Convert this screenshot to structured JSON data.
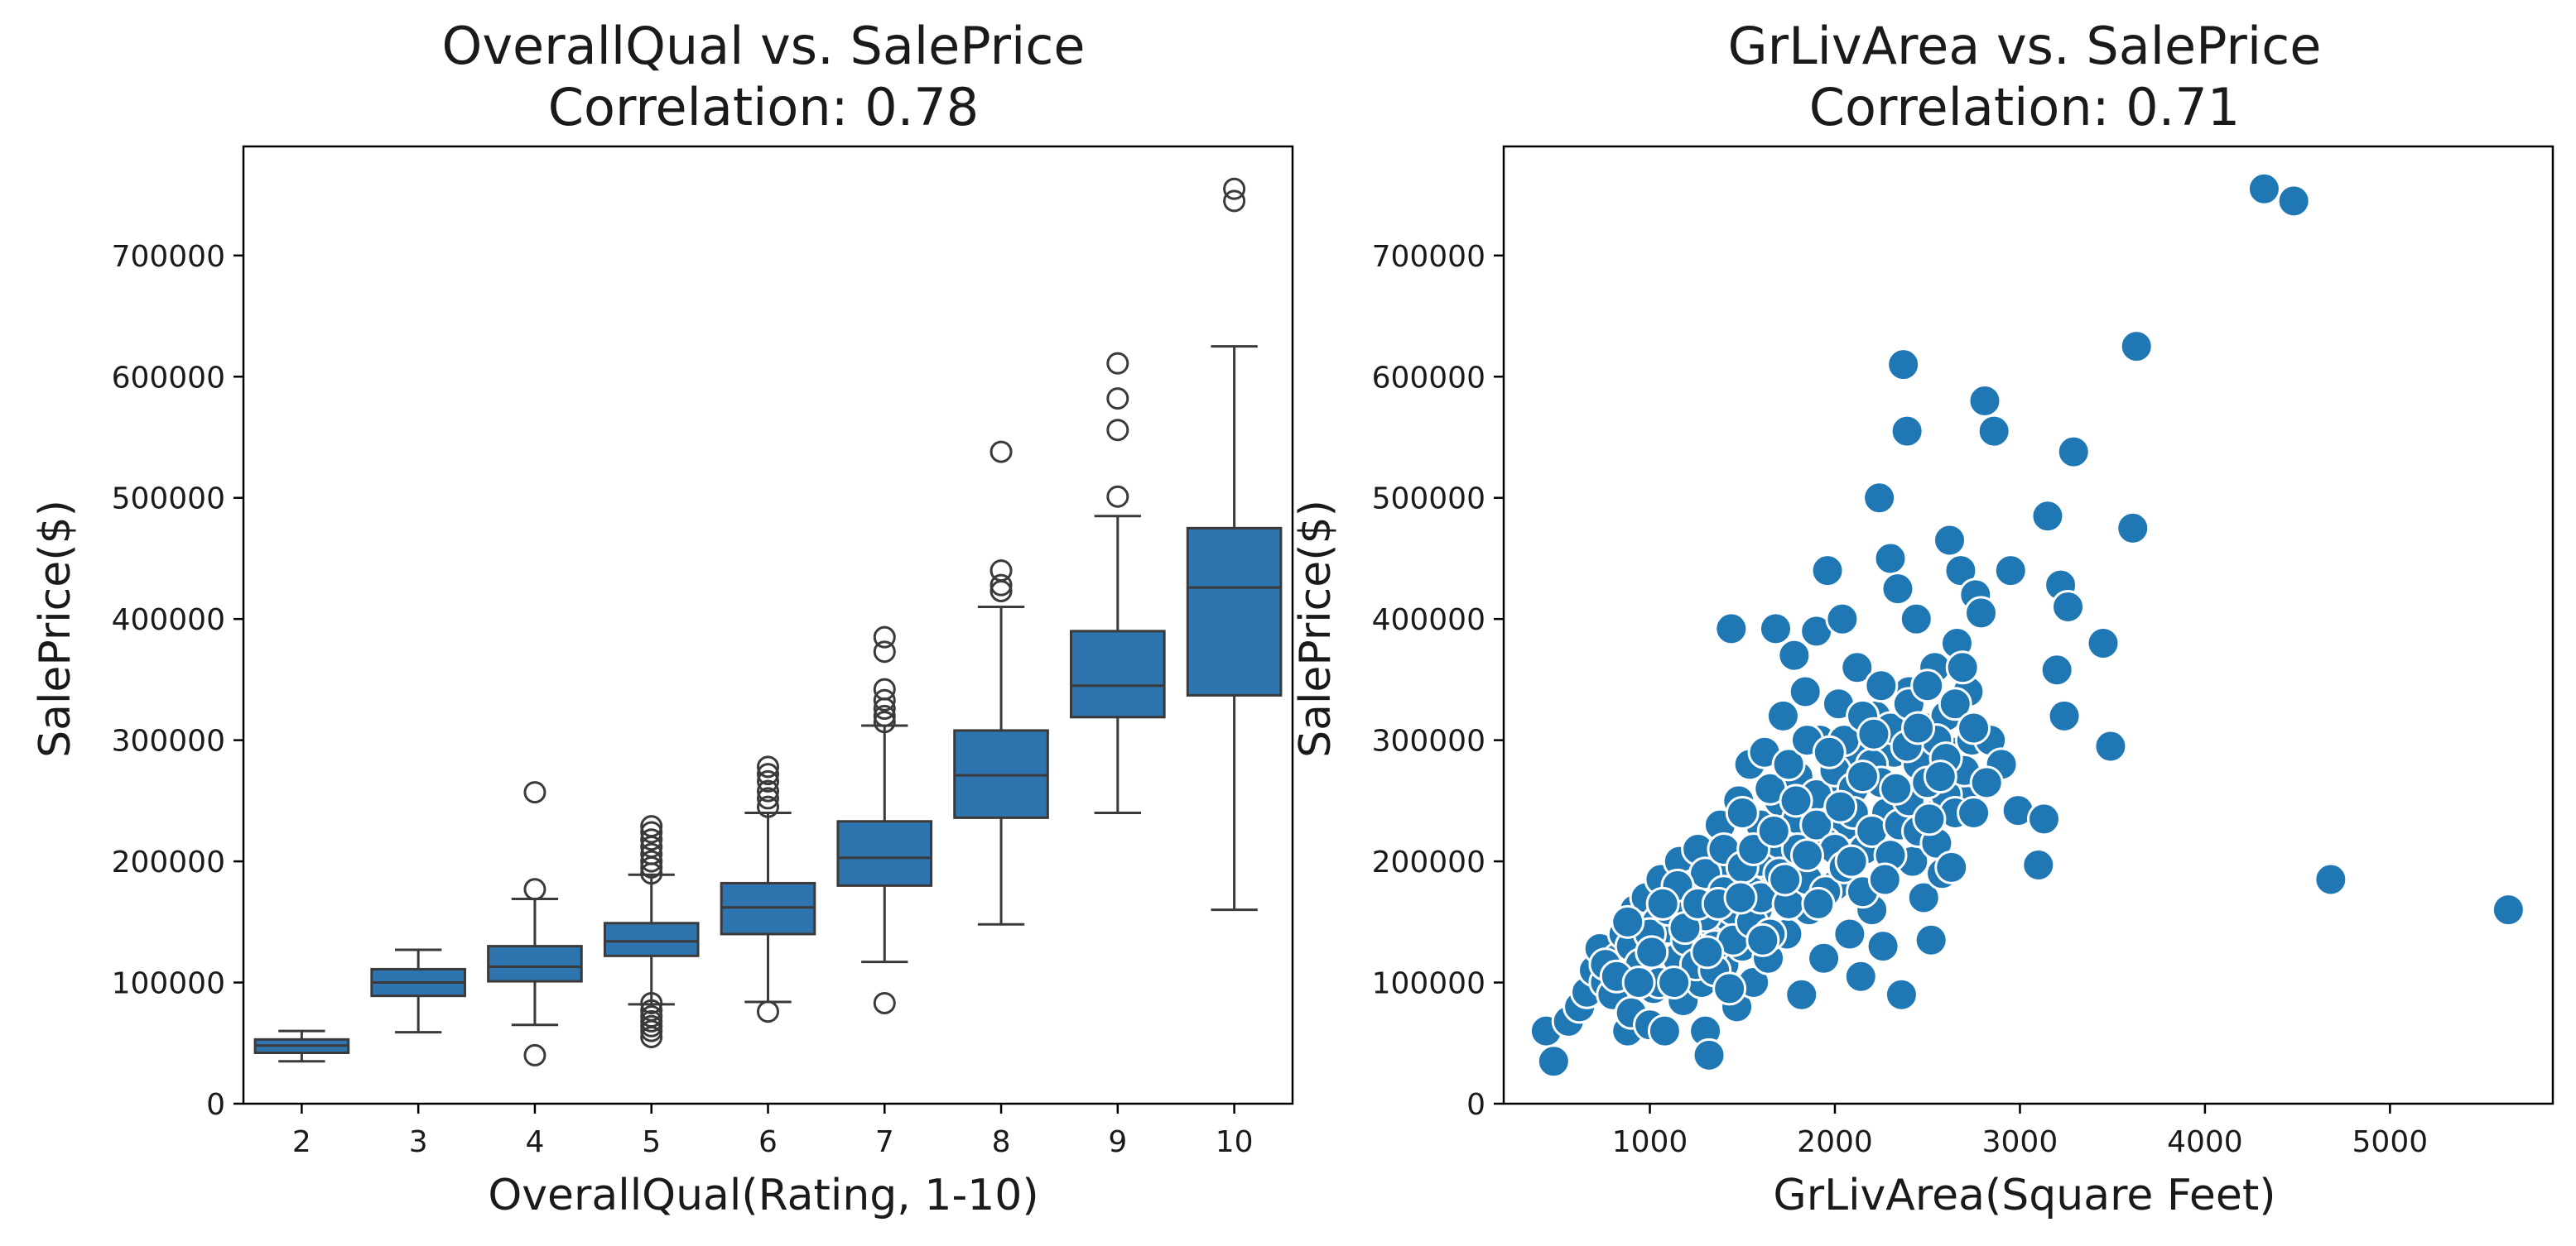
{
  "chart_data": [
    {
      "type": "box",
      "title_line1": "OverallQual vs. SalePrice",
      "title_line2": "Correlation: 0.78",
      "xlabel": "OverallQual(Rating, 1-10)",
      "ylabel": "SalePrice($)",
      "ylim": [
        0,
        790000
      ],
      "yticks": [
        0,
        100000,
        200000,
        300000,
        400000,
        500000,
        600000,
        700000
      ],
      "color": "#2e75b0",
      "categories": [
        "2",
        "3",
        "4",
        "5",
        "6",
        "7",
        "8",
        "9",
        "10"
      ],
      "boxes": [
        {
          "category": "2",
          "whisker_low": 35000,
          "q1": 42000,
          "median": 48000,
          "q3": 53000,
          "whisker_high": 60000,
          "outliers": []
        },
        {
          "category": "3",
          "whisker_low": 59000,
          "q1": 89000,
          "median": 100000,
          "q3": 111000,
          "whisker_high": 127000,
          "outliers": []
        },
        {
          "category": "4",
          "whisker_low": 65000,
          "q1": 101000,
          "median": 113000,
          "q3": 130000,
          "whisker_high": 169000,
          "outliers": [
            40000,
            177000,
            257000
          ]
        },
        {
          "category": "5",
          "whisker_low": 82000,
          "q1": 122000,
          "median": 134000,
          "q3": 149000,
          "whisker_high": 189000,
          "outliers": [
            55000,
            60000,
            64000,
            68000,
            72000,
            77000,
            83000,
            190000,
            195000,
            200000,
            206000,
            212000,
            218000,
            224000,
            229000
          ]
        },
        {
          "category": "6",
          "whisker_low": 84000,
          "q1": 140000,
          "median": 162000,
          "q3": 182000,
          "whisker_high": 240000,
          "outliers": [
            76000,
            245000,
            252000,
            258000,
            266000,
            272000,
            278000
          ]
        },
        {
          "category": "7",
          "whisker_low": 117000,
          "q1": 180000,
          "median": 203000,
          "q3": 233000,
          "whisker_high": 312000,
          "outliers": [
            83000,
            315000,
            320000,
            326000,
            333000,
            342000,
            373000,
            385000
          ]
        },
        {
          "category": "8",
          "whisker_low": 148000,
          "q1": 236000,
          "median": 271000,
          "q3": 308000,
          "whisker_high": 410000,
          "outliers": [
            423000,
            428000,
            440000,
            538000
          ]
        },
        {
          "category": "9",
          "whisker_low": 240000,
          "q1": 319000,
          "median": 345000,
          "q3": 390000,
          "whisker_high": 485000,
          "outliers": [
            501000,
            556000,
            582000,
            611000
          ]
        },
        {
          "category": "10",
          "whisker_low": 160000,
          "q1": 337000,
          "median": 426000,
          "q3": 475000,
          "whisker_high": 625000,
          "outliers": [
            745000,
            755000
          ]
        }
      ]
    },
    {
      "type": "scatter",
      "title_line1": "GrLivArea vs. SalePrice",
      "title_line2": "Correlation: 0.71",
      "xlabel": "GrLivArea(Square Feet)",
      "ylabel": "SalePrice($)",
      "xlim": [
        210,
        5880
      ],
      "ylim": [
        0,
        790000
      ],
      "xticks": [
        1000,
        2000,
        3000,
        4000,
        5000
      ],
      "yticks": [
        0,
        100000,
        200000,
        300000,
        400000,
        500000,
        600000,
        700000
      ],
      "color": "#1f77b4",
      "points": [
        [
          440,
          60000
        ],
        [
          480,
          35000
        ],
        [
          560,
          68000
        ],
        [
          620,
          80000
        ],
        [
          660,
          92000
        ],
        [
          700,
          110000
        ],
        [
          730,
          128000
        ],
        [
          760,
          100000
        ],
        [
          800,
          90000
        ],
        [
          830,
          120000
        ],
        [
          860,
          140000
        ],
        [
          880,
          60000
        ],
        [
          900,
          75000
        ],
        [
          920,
          160000
        ],
        [
          950,
          130000
        ],
        [
          980,
          170000
        ],
        [
          1000,
          65000
        ],
        [
          1020,
          95000
        ],
        [
          1040,
          150000
        ],
        [
          1060,
          185000
        ],
        [
          1080,
          60000
        ],
        [
          1100,
          110000
        ],
        [
          1120,
          135000
        ],
        [
          1140,
          165000
        ],
        [
          1160,
          200000
        ],
        [
          1180,
          85000
        ],
        [
          1200,
          125000
        ],
        [
          1220,
          150000
        ],
        [
          1240,
          180000
        ],
        [
          1260,
          210000
        ],
        [
          1280,
          100000
        ],
        [
          1300,
          60000
        ],
        [
          1320,
          40000
        ],
        [
          1330,
          140000
        ],
        [
          1350,
          175000
        ],
        [
          1380,
          230000
        ],
        [
          1400,
          115000
        ],
        [
          1420,
          155000
        ],
        [
          1440,
          392000
        ],
        [
          1450,
          190000
        ],
        [
          1470,
          80000
        ],
        [
          1480,
          250000
        ],
        [
          1500,
          130000
        ],
        [
          1520,
          205000
        ],
        [
          1540,
          280000
        ],
        [
          1560,
          100000
        ],
        [
          1580,
          160000
        ],
        [
          1600,
          230000
        ],
        [
          1620,
          290000
        ],
        [
          1640,
          120000
        ],
        [
          1660,
          180000
        ],
        [
          1680,
          392000
        ],
        [
          1700,
          250000
        ],
        [
          1720,
          320000
        ],
        [
          1740,
          140000
        ],
        [
          1760,
          200000
        ],
        [
          1780,
          370000
        ],
        [
          1800,
          270000
        ],
        [
          1820,
          90000
        ],
        [
          1840,
          340000
        ],
        [
          1860,
          160000
        ],
        [
          1880,
          220000
        ],
        [
          1900,
          390000
        ],
        [
          1920,
          300000
        ],
        [
          1940,
          120000
        ],
        [
          1960,
          440000
        ],
        [
          1980,
          250000
        ],
        [
          2000,
          180000
        ],
        [
          2020,
          330000
        ],
        [
          2040,
          400000
        ],
        [
          2060,
          230000
        ],
        [
          2080,
          140000
        ],
        [
          2100,
          290000
        ],
        [
          2120,
          360000
        ],
        [
          2140,
          105000
        ],
        [
          2160,
          210000
        ],
        [
          2180,
          270000
        ],
        [
          2200,
          160000
        ],
        [
          2220,
          320000
        ],
        [
          2240,
          500000
        ],
        [
          2260,
          130000
        ],
        [
          2280,
          240000
        ],
        [
          2300,
          450000
        ],
        [
          2320,
          290000
        ],
        [
          2340,
          425000
        ],
        [
          2360,
          90000
        ],
        [
          2370,
          610000
        ],
        [
          2390,
          555000
        ],
        [
          2400,
          340000
        ],
        [
          2420,
          200000
        ],
        [
          2440,
          400000
        ],
        [
          2460,
          270000
        ],
        [
          2480,
          170000
        ],
        [
          2500,
          310000
        ],
        [
          2520,
          135000
        ],
        [
          2540,
          360000
        ],
        [
          2560,
          240000
        ],
        [
          2580,
          190000
        ],
        [
          2600,
          320000
        ],
        [
          2620,
          465000
        ],
        [
          2640,
          290000
        ],
        [
          2660,
          380000
        ],
        [
          2680,
          440000
        ],
        [
          2700,
          250000
        ],
        [
          2720,
          340000
        ],
        [
          2740,
          300000
        ],
        [
          2760,
          420000
        ],
        [
          2790,
          405000
        ],
        [
          2810,
          580000
        ],
        [
          2840,
          300000
        ],
        [
          2860,
          555000
        ],
        [
          2900,
          280000
        ],
        [
          2950,
          440000
        ],
        [
          2990,
          242000
        ],
        [
          3100,
          197000
        ],
        [
          3130,
          235000
        ],
        [
          3150,
          485000
        ],
        [
          3200,
          358000
        ],
        [
          3220,
          428000
        ],
        [
          3240,
          320000
        ],
        [
          3260,
          410000
        ],
        [
          3290,
          538000
        ],
        [
          3450,
          380000
        ],
        [
          3490,
          295000
        ],
        [
          3610,
          475000
        ],
        [
          3630,
          625000
        ],
        [
          4320,
          755000
        ],
        [
          4480,
          745000
        ],
        [
          4680,
          185000
        ],
        [
          5640,
          160000
        ],
        [
          1000,
          110000
        ],
        [
          1050,
          125000
        ],
        [
          1100,
          145000
        ],
        [
          1150,
          120000
        ],
        [
          1200,
          170000
        ],
        [
          1250,
          145000
        ],
        [
          1300,
          190000
        ],
        [
          1350,
          130000
        ],
        [
          1400,
          210000
        ],
        [
          1450,
          160000
        ],
        [
          1500,
          240000
        ],
        [
          1550,
          175000
        ],
        [
          1600,
          200000
        ],
        [
          1650,
          260000
        ],
        [
          1700,
          215000
        ],
        [
          1750,
          280000
        ],
        [
          1800,
          235000
        ],
        [
          1850,
          300000
        ],
        [
          1900,
          255000
        ],
        [
          1950,
          215000
        ],
        [
          2000,
          275000
        ],
        [
          2050,
          300000
        ],
        [
          2100,
          260000
        ],
        [
          2150,
          320000
        ],
        [
          2200,
          280000
        ],
        [
          2250,
          345000
        ],
        [
          2300,
          310000
        ],
        [
          2350,
          260000
        ],
        [
          2400,
          330000
        ],
        [
          2450,
          280000
        ],
        [
          2500,
          345000
        ],
        [
          2550,
          300000
        ],
        [
          2600,
          255000
        ],
        [
          2650,
          330000
        ],
        [
          2700,
          275000
        ],
        [
          2750,
          310000
        ],
        [
          900,
          130000
        ],
        [
          950,
          115000
        ],
        [
          1000,
          140000
        ],
        [
          1050,
          100000
        ],
        [
          1100,
          160000
        ],
        [
          1150,
          180000
        ],
        [
          1200,
          135000
        ],
        [
          1250,
          115000
        ],
        [
          1300,
          155000
        ],
        [
          1350,
          110000
        ],
        [
          1400,
          175000
        ],
        [
          1450,
          135000
        ],
        [
          1500,
          195000
        ],
        [
          1550,
          150000
        ],
        [
          1600,
          170000
        ],
        [
          1650,
          140000
        ],
        [
          1700,
          190000
        ],
        [
          1750,
          165000
        ],
        [
          1800,
          210000
        ],
        [
          1850,
          185000
        ],
        [
          1900,
          230000
        ],
        [
          1950,
          175000
        ],
        [
          2000,
          210000
        ],
        [
          2050,
          195000
        ],
        [
          2100,
          240000
        ],
        [
          2150,
          175000
        ],
        [
          2200,
          225000
        ],
        [
          2250,
          265000
        ],
        [
          2300,
          205000
        ],
        [
          2350,
          230000
        ],
        [
          2400,
          250000
        ],
        [
          2450,
          225000
        ],
        [
          2500,
          265000
        ],
        [
          2550,
          215000
        ],
        [
          2600,
          285000
        ],
        [
          2650,
          240000
        ],
        [
          760,
          115000
        ],
        [
          820,
          105000
        ],
        [
          880,
          150000
        ],
        [
          940,
          100000
        ],
        [
          1010,
          125000
        ],
        [
          1070,
          165000
        ],
        [
          1130,
          100000
        ],
        [
          1190,
          145000
        ],
        [
          1260,
          165000
        ],
        [
          1310,
          125000
        ],
        [
          1370,
          165000
        ],
        [
          1430,
          95000
        ],
        [
          1490,
          170000
        ],
        [
          1560,
          210000
        ],
        [
          1610,
          135000
        ],
        [
          1670,
          225000
        ],
        [
          1730,
          185000
        ],
        [
          1790,
          250000
        ],
        [
          1850,
          205000
        ],
        [
          1910,
          165000
        ],
        [
          1970,
          290000
        ],
        [
          2030,
          245000
        ],
        [
          2090,
          200000
        ],
        [
          2150,
          270000
        ],
        [
          2210,
          305000
        ],
        [
          2270,
          185000
        ],
        [
          2330,
          260000
        ],
        [
          2390,
          295000
        ],
        [
          2450,
          310000
        ],
        [
          2510,
          235000
        ],
        [
          2570,
          270000
        ],
        [
          2630,
          195000
        ],
        [
          2690,
          360000
        ],
        [
          2750,
          240000
        ],
        [
          2820,
          265000
        ]
      ]
    }
  ]
}
